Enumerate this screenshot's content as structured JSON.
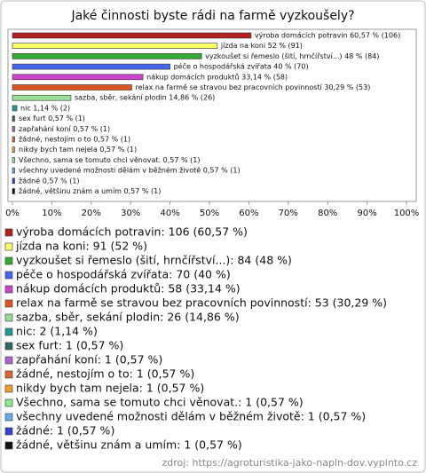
{
  "chart_data": {
    "type": "bar",
    "orientation": "horizontal",
    "title": "Jaké činnosti byste rádi na farmě vyzkoušely?",
    "values": [
      60.57,
      52,
      48,
      40,
      33.14,
      30.29,
      14.86,
      1.14,
      0.57,
      0.57,
      0.57,
      0.57,
      0.57,
      0.57,
      0.57,
      0.57
    ],
    "value_labels": [
      "výroba domácích potravin 60,57 % (106)",
      "jízda na koni 52 % (91)",
      "vyzkoušet si řemeslo (šití, hrnčířství...) 48 % (84)",
      "péče o hospodářská zvířata 40 % (70)",
      "nákup domácích produktů 33,14 % (58)",
      "relax na farmě se stravou bez pracovních povinností 30,29 % (53)",
      "sazba, sběr, sekání plodin 14,86 % (26)",
      "nic 1,14 % (2)",
      "sex furt 0,57 % (1)",
      "zapřahání koní 0,57 % (1)",
      "žádné, nestojím o to 0,57 % (1)",
      "nikdy bych tam nejela 0,57 % (1)",
      "Všechno, sama se tomuto chci věnovat. 0,57 % (1)",
      "všechny uvedené možnosti dělám v běžném životě 0,57 % (1)",
      "žádné 0,57 % (1)",
      "žádné, většinu znám a umím 0,57 % (1)"
    ],
    "legend_labels": [
      "výroba domácích potravin: 106 (60,57 %)",
      "jízda na koni: 91 (52 %)",
      "vyzkoušet si řemeslo (šití, hrnčířství...): 84 (48 %)",
      "péče o hospodářská zvířata: 70 (40 %)",
      "nákup domácích produktů: 58 (33,14 %)",
      "relax na farmě se stravou bez pracovních povinností: 53 (30,29 %)",
      "sazba, sběr, sekání plodin: 26 (14,86 %)",
      "nic: 2 (1,14 %)",
      "sex furt: 1 (0,57 %)",
      "zapřahání koní: 1 (0,57 %)",
      "žádné, nestojím o to: 1 (0,57 %)",
      "nikdy bych tam nejela: 1 (0,57 %)",
      "Všechno, sama se tomuto chci věnovat.: 1 (0,57 %)",
      "všechny uvedené možnosti dělám v běžném životě: 1 (0,57 %)",
      "žádné: 1 (0,57 %)",
      "žádné, většinu znám a umím: 1 (0,57 %)"
    ],
    "colors": [
      "#b22222",
      "#ffff66",
      "#33aa33",
      "#4466ee",
      "#cc44cc",
      "#dd5522",
      "#99dd99",
      "#229999",
      "#336666",
      "#aa66cc",
      "#dd6633",
      "#f0a030",
      "#88ee88",
      "#66aaee",
      "#3344cc",
      "#111111"
    ],
    "xlim": [
      0,
      100
    ],
    "xticks": [
      {
        "value": 0,
        "label": "0%"
      },
      {
        "value": 10,
        "label": "10%"
      },
      {
        "value": 20,
        "label": "20%"
      },
      {
        "value": 30,
        "label": "30%"
      },
      {
        "value": 40,
        "label": "40%"
      },
      {
        "value": 50,
        "label": "50%"
      },
      {
        "value": 60,
        "label": "60%"
      },
      {
        "value": 70,
        "label": "70%"
      },
      {
        "value": 80,
        "label": "80%"
      },
      {
        "value": 90,
        "label": "90%"
      },
      {
        "value": 100,
        "label": "100%"
      }
    ],
    "source": "zdroj: https://agroturistika-jako-napln-dov.vyplnto.cz"
  }
}
